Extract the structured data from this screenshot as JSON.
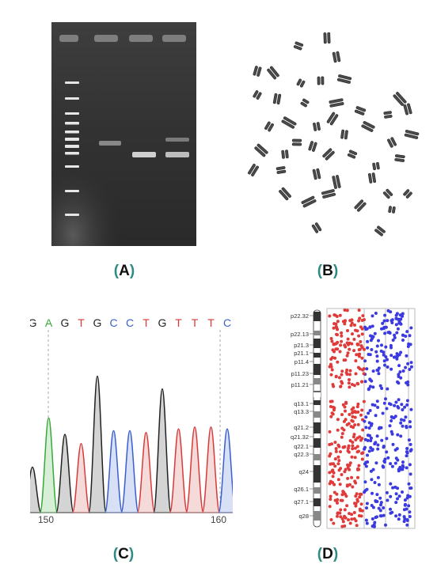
{
  "panels": {
    "a": {
      "label": "A"
    },
    "b": {
      "label": "B"
    },
    "c": {
      "label": "C"
    },
    "d": {
      "label": "D"
    }
  },
  "parens": {
    "open": "(",
    "close": ")"
  },
  "sequence": {
    "bases": [
      "G",
      "A",
      "G",
      "T",
      "G",
      "C",
      "C",
      "T",
      "G",
      "T",
      "T",
      "T",
      "C"
    ],
    "colors": {
      "A": "#3aa83a",
      "C": "#3a5fcf",
      "G": "#222222",
      "T": "#d83a3a"
    },
    "positions": [
      "150",
      "160"
    ]
  },
  "karyotype": {
    "bands": [
      "p22.32",
      "p22.13",
      "p21.3",
      "p21.1",
      "p11.4",
      "p11.23",
      "p11.21",
      "q13.1",
      "q13.3",
      "q21.2",
      "q21.32",
      "q22.1",
      "q22.3",
      "q24",
      "q26.1",
      "q27.1",
      "q28"
    ],
    "colors": {
      "left": "#e03b3b",
      "right": "#3a3ae0"
    }
  }
}
